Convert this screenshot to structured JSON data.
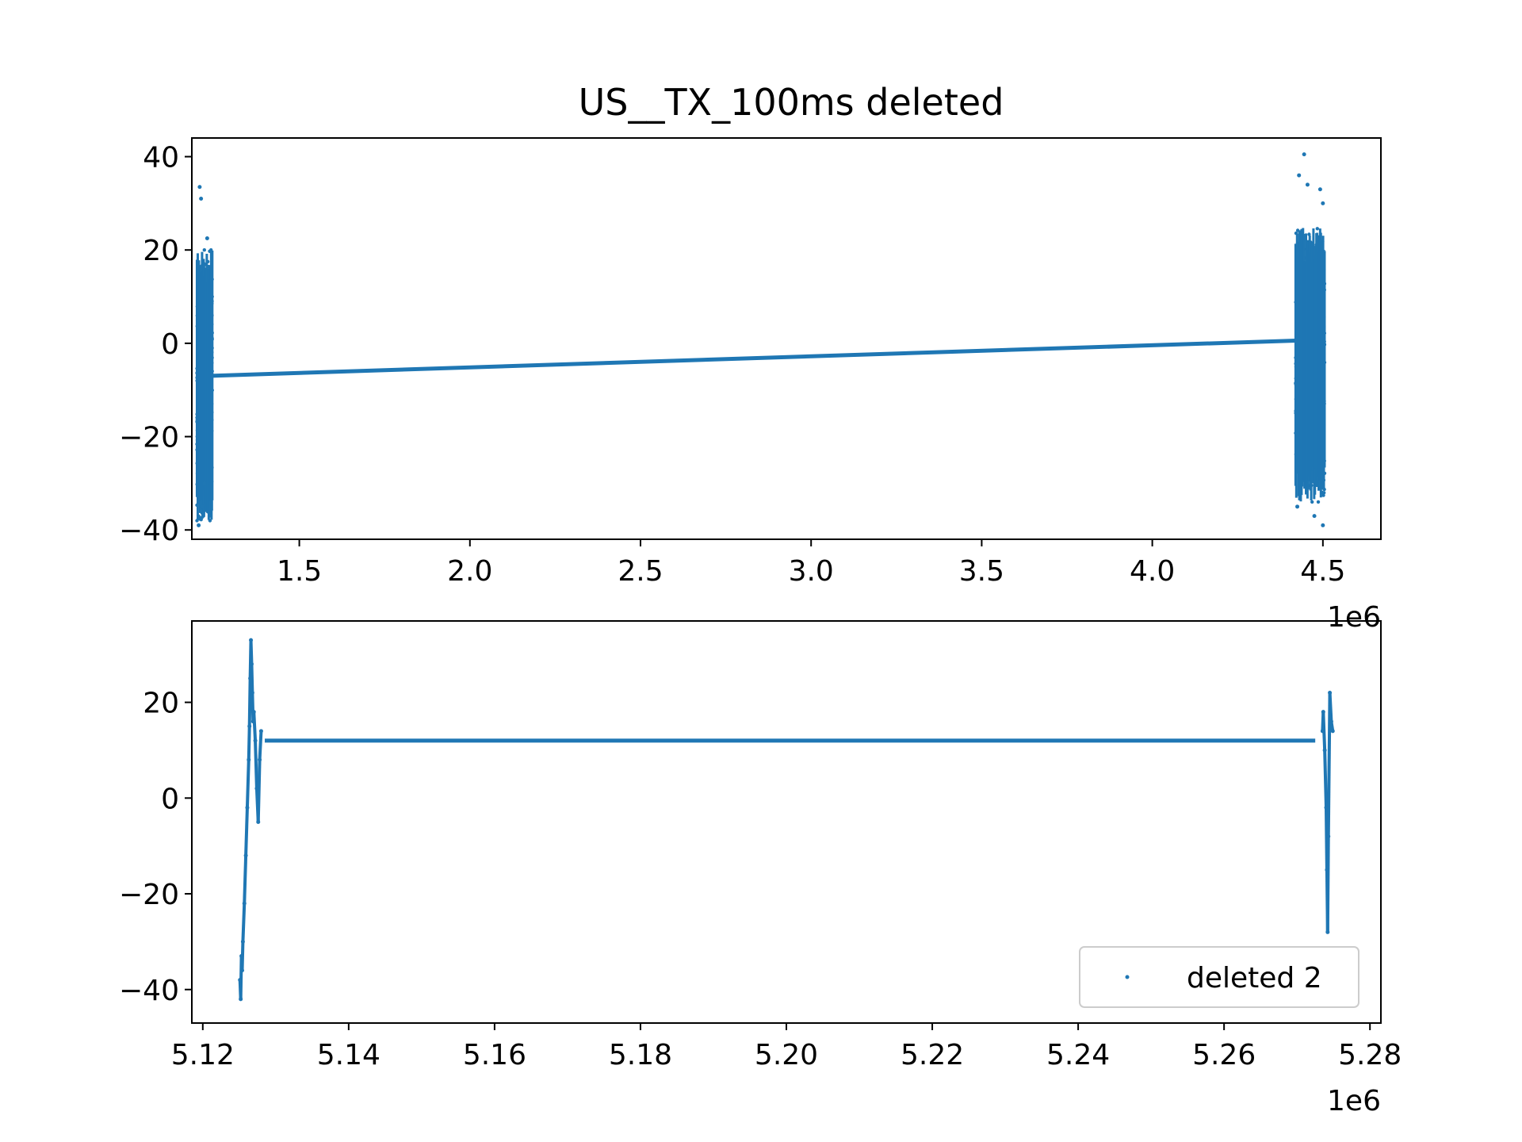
{
  "figure": {
    "title": "US__TX_100ms deleted"
  },
  "chart_data": [
    {
      "type": "scatter",
      "title": "US__TX_100ms deleted",
      "xlabel": "",
      "ylabel": "",
      "x_offset_label": "1e6",
      "xlim": [
        1.185,
        4.67
      ],
      "ylim": [
        -42,
        44
      ],
      "xticks": [
        1.5,
        2.0,
        2.5,
        3.0,
        3.5,
        4.0,
        4.5
      ],
      "xtick_labels": [
        "1.5",
        "2.0",
        "2.5",
        "3.0",
        "3.5",
        "4.0",
        "4.5"
      ],
      "yticks": [
        -40,
        -20,
        0,
        20,
        40
      ],
      "ytick_labels": [
        "−40",
        "−20",
        "0",
        "20",
        "40"
      ],
      "color": "#1f77b4",
      "grid": false,
      "legend": null,
      "series": [
        {
          "line_segments": [
            {
              "x": [
                1.225,
                4.43
              ],
              "y": [
                -7.0,
                0.6
              ]
            }
          ],
          "dense_bands": [
            {
              "x_min": 1.2,
              "x_max": 1.245,
              "y_min": -38,
              "y_max": 20,
              "outliers": [
                [
                  1.208,
                  33.5
                ],
                [
                  1.212,
                  31
                ],
                [
                  1.23,
                  22.5
                ],
                [
                  1.222,
                  -30
                ],
                [
                  1.205,
                  -39
                ],
                [
                  1.215,
                  -35
                ]
              ]
            },
            {
              "x_min": 4.42,
              "x_max": 4.505,
              "y_min": -34,
              "y_max": 25,
              "outliers": [
                [
                  4.445,
                  40.5
                ],
                [
                  4.43,
                  36
                ],
                [
                  4.455,
                  34
                ],
                [
                  4.492,
                  33
                ],
                [
                  4.5,
                  30
                ],
                [
                  4.475,
                  -37
                ],
                [
                  4.5,
                  -39
                ],
                [
                  4.425,
                  -35
                ]
              ]
            }
          ]
        }
      ]
    },
    {
      "type": "scatter",
      "title": "",
      "xlabel": "",
      "ylabel": "",
      "x_offset_label": "1e6",
      "xlim": [
        5.1185,
        5.2815
      ],
      "ylim": [
        -47,
        37
      ],
      "xticks": [
        5.12,
        5.14,
        5.16,
        5.18,
        5.2,
        5.22,
        5.24,
        5.26,
        5.28
      ],
      "xtick_labels": [
        "5.12",
        "5.14",
        "5.16",
        "5.18",
        "5.20",
        "5.22",
        "5.24",
        "5.26",
        "5.28"
      ],
      "yticks": [
        -40,
        -20,
        0,
        20
      ],
      "ytick_labels": [
        "−40",
        "−20",
        "0",
        "20"
      ],
      "color": "#1f77b4",
      "grid": false,
      "legend": {
        "entries": [
          "deleted 2"
        ],
        "placement": "lower right"
      },
      "series": [
        {
          "name": "deleted 2",
          "line_segments": [
            {
              "x": [
                5.1285,
                5.2725
              ],
              "y": [
                12.0,
                12.0
              ]
            }
          ],
          "trace_points": [
            [
              5.1251,
              -38
            ],
            [
              5.1252,
              -42
            ],
            [
              5.1253,
              -33
            ],
            [
              5.1254,
              -36
            ],
            [
              5.1255,
              -30
            ],
            [
              5.1257,
              -22
            ],
            [
              5.1259,
              -12
            ],
            [
              5.1261,
              -2
            ],
            [
              5.1263,
              8
            ],
            [
              5.1264,
              15
            ],
            [
              5.1265,
              25
            ],
            [
              5.1266,
              33
            ],
            [
              5.1267,
              28
            ],
            [
              5.1268,
              22
            ],
            [
              5.1269,
              16
            ],
            [
              5.127,
              18
            ],
            [
              5.1272,
              12
            ],
            [
              5.1274,
              2
            ],
            [
              5.1276,
              -5
            ],
            [
              5.1278,
              8
            ],
            [
              5.128,
              14
            ],
            [
              5.2735,
              14
            ],
            [
              5.2736,
              18
            ],
            [
              5.2738,
              10
            ],
            [
              5.274,
              -2
            ],
            [
              5.2741,
              -15
            ],
            [
              5.2742,
              -28
            ],
            [
              5.2743,
              -8
            ],
            [
              5.2745,
              22
            ],
            [
              5.2747,
              16
            ],
            [
              5.2749,
              14
            ]
          ]
        }
      ]
    }
  ]
}
